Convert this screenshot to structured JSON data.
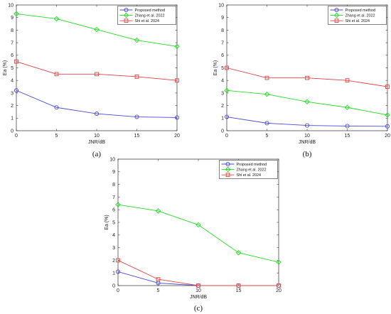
{
  "chart_data": [
    {
      "type": "line",
      "caption": "(a)",
      "xlabel": "JNR/dB",
      "ylabel": "Ea (%)",
      "x": [
        0,
        5,
        10,
        15,
        20
      ],
      "xticks": [
        "0",
        "5",
        "10",
        "15",
        "20"
      ],
      "yticks": [
        "0",
        "1",
        "2",
        "3",
        "4",
        "5",
        "6",
        "7",
        "8",
        "9",
        "10"
      ],
      "xlim": [
        0,
        20
      ],
      "ylim": [
        0,
        10
      ],
      "grid": false,
      "legend_position": "top-right",
      "series": [
        {
          "name": "Proposed method",
          "values": [
            3.2,
            1.85,
            1.35,
            1.1,
            1.05
          ],
          "color": "#4a4ad8",
          "marker": "circle"
        },
        {
          "name": "Zhang et al. 2022",
          "values": [
            9.3,
            8.9,
            8.05,
            7.2,
            6.7
          ],
          "color": "#22dd22",
          "marker": "diamond"
        },
        {
          "name": "Shi et al. 2024",
          "values": [
            5.5,
            4.5,
            4.5,
            4.3,
            4.0
          ],
          "color": "#e04040",
          "marker": "square"
        }
      ]
    },
    {
      "type": "line",
      "caption": "(b)",
      "xlabel": "JNR/dB",
      "ylabel": "Ea (%)",
      "x": [
        0,
        5,
        10,
        15,
        20
      ],
      "xticks": [
        "0",
        "5",
        "10",
        "15",
        "20"
      ],
      "yticks": [
        "0",
        "1",
        "2",
        "3",
        "4",
        "5",
        "6",
        "7",
        "8",
        "9",
        "10"
      ],
      "xlim": [
        0,
        20
      ],
      "ylim": [
        0,
        10
      ],
      "grid": false,
      "legend_position": "top-right",
      "series": [
        {
          "name": "Proposed method",
          "values": [
            1.1,
            0.6,
            0.42,
            0.37,
            0.35
          ],
          "color": "#4a4ad8",
          "marker": "circle"
        },
        {
          "name": "Zhang et al. 2022",
          "values": [
            3.2,
            2.9,
            2.3,
            1.85,
            1.25
          ],
          "color": "#22dd22",
          "marker": "diamond"
        },
        {
          "name": "Shi et al. 2024",
          "values": [
            5.0,
            4.2,
            4.2,
            4.0,
            3.5
          ],
          "color": "#e04040",
          "marker": "square"
        }
      ]
    },
    {
      "type": "line",
      "caption": "(c)",
      "xlabel": "JNR/dB",
      "ylabel": "Ea (%)",
      "x": [
        0,
        5,
        10,
        15,
        20
      ],
      "xticks": [
        "0",
        "5",
        "10",
        "15",
        "20"
      ],
      "yticks": [
        "0",
        "1",
        "2",
        "3",
        "4",
        "5",
        "6",
        "7",
        "8",
        "9",
        "10"
      ],
      "xlim": [
        0,
        20
      ],
      "ylim": [
        0,
        10
      ],
      "grid": false,
      "legend_position": "top-right",
      "series": [
        {
          "name": "Proposed method",
          "values": [
            1.1,
            0.2,
            0.0,
            0.0,
            0.0
          ],
          "color": "#4a4ad8",
          "marker": "circle"
        },
        {
          "name": "Zhang et al. 2022",
          "values": [
            6.4,
            5.9,
            4.8,
            2.6,
            1.85
          ],
          "color": "#22dd22",
          "marker": "diamond"
        },
        {
          "name": "Shi et al. 2024",
          "values": [
            2.0,
            0.5,
            0.0,
            0.0,
            0.0
          ],
          "color": "#e04040",
          "marker": "square"
        }
      ]
    }
  ]
}
